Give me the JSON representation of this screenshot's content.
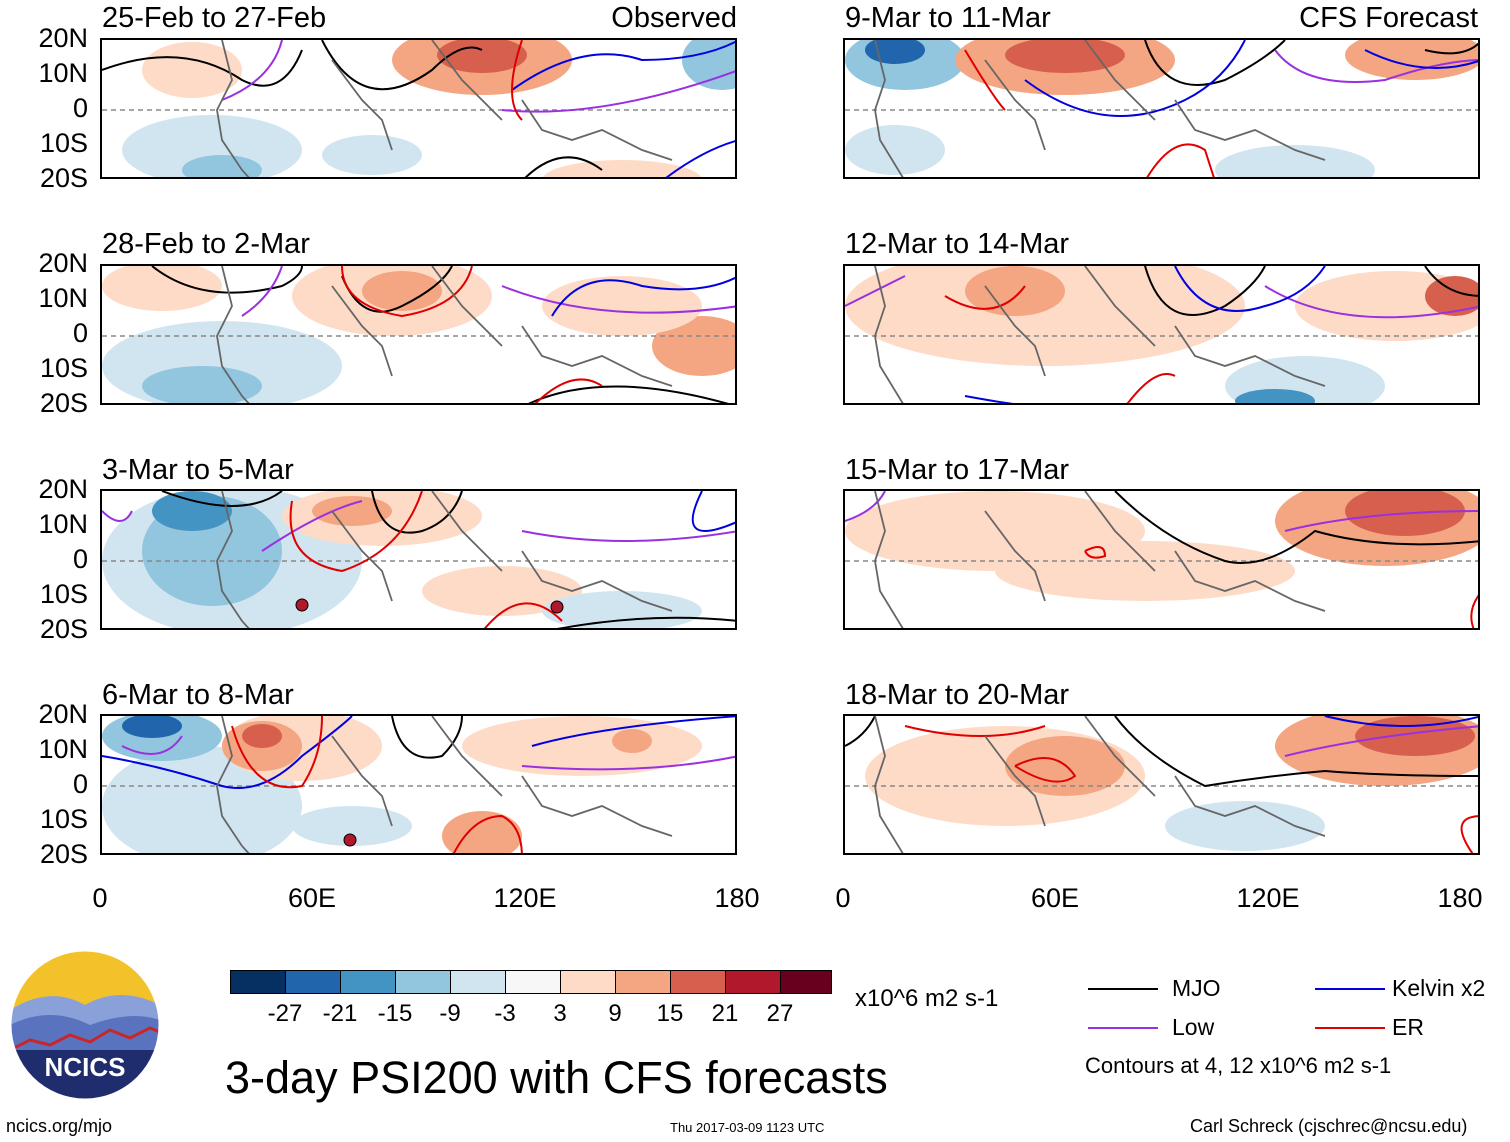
{
  "colors": {
    "mjo": "#000000",
    "low": "#9b30e0",
    "kelvin": "#0000e0",
    "er": "#e00000",
    "coast": "#666666"
  },
  "panels": [
    {
      "title": "25-Feb to 27-Feb",
      "label": "Observed"
    },
    {
      "title": "9-Mar to 11-Mar",
      "label": "CFS Forecast"
    },
    {
      "title": "28-Feb to 2-Mar",
      "label": ""
    },
    {
      "title": "12-Mar to 14-Mar",
      "label": ""
    },
    {
      "title": "3-Mar to 5-Mar",
      "label": ""
    },
    {
      "title": "15-Mar to 17-Mar",
      "label": ""
    },
    {
      "title": "6-Mar to 8-Mar",
      "label": ""
    },
    {
      "title": "18-Mar to 20-Mar",
      "label": ""
    }
  ],
  "y_ticks": [
    "20N",
    "10N",
    "0",
    "10S",
    "20S"
  ],
  "x_ticks": [
    "0",
    "60E",
    "120E",
    "180"
  ],
  "colorbar": {
    "colors": [
      "#053061",
      "#2166ac",
      "#4393c3",
      "#92c5de",
      "#d1e5f0",
      "#f7f7f7",
      "#fddbc7",
      "#f4a582",
      "#d6604d",
      "#b2182b",
      "#67001f"
    ],
    "labels": [
      "-27",
      "-21",
      "-15",
      "-9",
      "-3",
      "3",
      "9",
      "15",
      "21",
      "27"
    ],
    "units": "x10^6 m2 s-1"
  },
  "legend": {
    "mjo": "MJO",
    "low": "Low",
    "kelvin": "Kelvin x2",
    "er": "ER",
    "note": "Contours at 4, 12 x10^6 m2 s-1"
  },
  "title": "3-day PSI200 with CFS forecasts",
  "logo_text": "NCICS",
  "footer": {
    "left": "ncics.org/mjo",
    "center": "Thu 2017-03-09 1123 UTC",
    "right": "Carl Schreck (cjschrec@ncsu.edu)"
  }
}
